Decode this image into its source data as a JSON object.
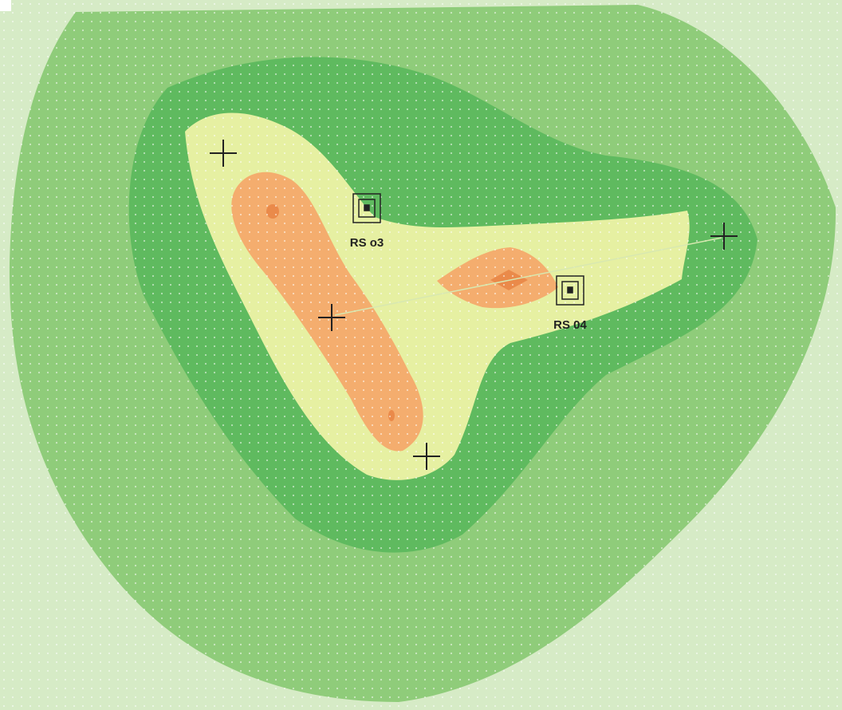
{
  "stations": [
    {
      "label": "RS o3"
    },
    {
      "label": "RS 04"
    }
  ]
}
